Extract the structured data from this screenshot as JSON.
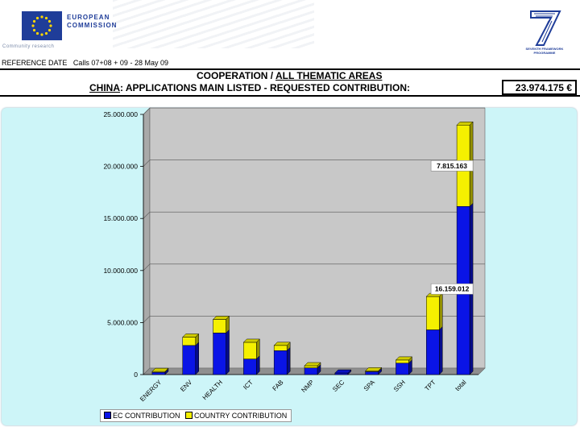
{
  "header": {
    "eu_name_line1": "EUROPEAN",
    "eu_name_line2": "COMMISSION",
    "eu_subtitle": "Community research",
    "fp7_caption": "SEVENTH FRAMEWORK PROGRAMME",
    "reference_label": "REFERENCE DATE",
    "reference_value": "Calls 07+08 + 09 - 28 May 09",
    "title_part1": "COOPERATION",
    "title_sep": " / ",
    "title_part2": "ALL THEMATIC AREAS",
    "subtitle_country": "CHINA",
    "subtitle_rest": ": APPLICATIONS MAIN LISTED - REQUESTED CONTRIBUTION:",
    "total_value": "23.974.175 €"
  },
  "colors": {
    "ec": "#0a14e6",
    "country": "#f5f000",
    "plot_bg": "#c8c8c8",
    "panel_bg": "#cdf5f8",
    "eu_blue": "#1f3d99"
  },
  "chart_data": {
    "type": "bar",
    "stacked": true,
    "title": "CHINA: APPLICATIONS MAIN LISTED - REQUESTED CONTRIBUTION",
    "categories": [
      "ENERGY",
      "ENV",
      "HEALTH",
      "ICT",
      "FAB",
      "NMP",
      "SEC",
      "SPA",
      "SSH",
      "TPT",
      "total"
    ],
    "series": [
      {
        "name": "EC CONTRIBUTION",
        "values": [
          220000,
          2800000,
          4000000,
          1500000,
          2300000,
          650000,
          150000,
          280000,
          1100000,
          4300000,
          16159012
        ]
      },
      {
        "name": "COUNTRY CONTRIBUTION",
        "values": [
          80000,
          800000,
          1300000,
          1600000,
          500000,
          200000,
          0,
          80000,
          300000,
          3200000,
          7815163
        ]
      }
    ],
    "data_labels": [
      {
        "category": "total",
        "series": "EC CONTRIBUTION",
        "text": "16.159.012"
      },
      {
        "category": "total",
        "series": "COUNTRY CONTRIBUTION",
        "text": "7.815.163"
      }
    ],
    "y_ticks": [
      0,
      5000000,
      10000000,
      15000000,
      20000000,
      25000000
    ],
    "y_tick_labels": [
      "0",
      "5.000.000",
      "10.000.000",
      "15.000.000",
      "20.000.000",
      "25.000.000"
    ],
    "ylim": [
      0,
      25000000
    ],
    "xlabel": "",
    "ylabel": "",
    "grid": true,
    "legend_position": "bottom-left"
  }
}
